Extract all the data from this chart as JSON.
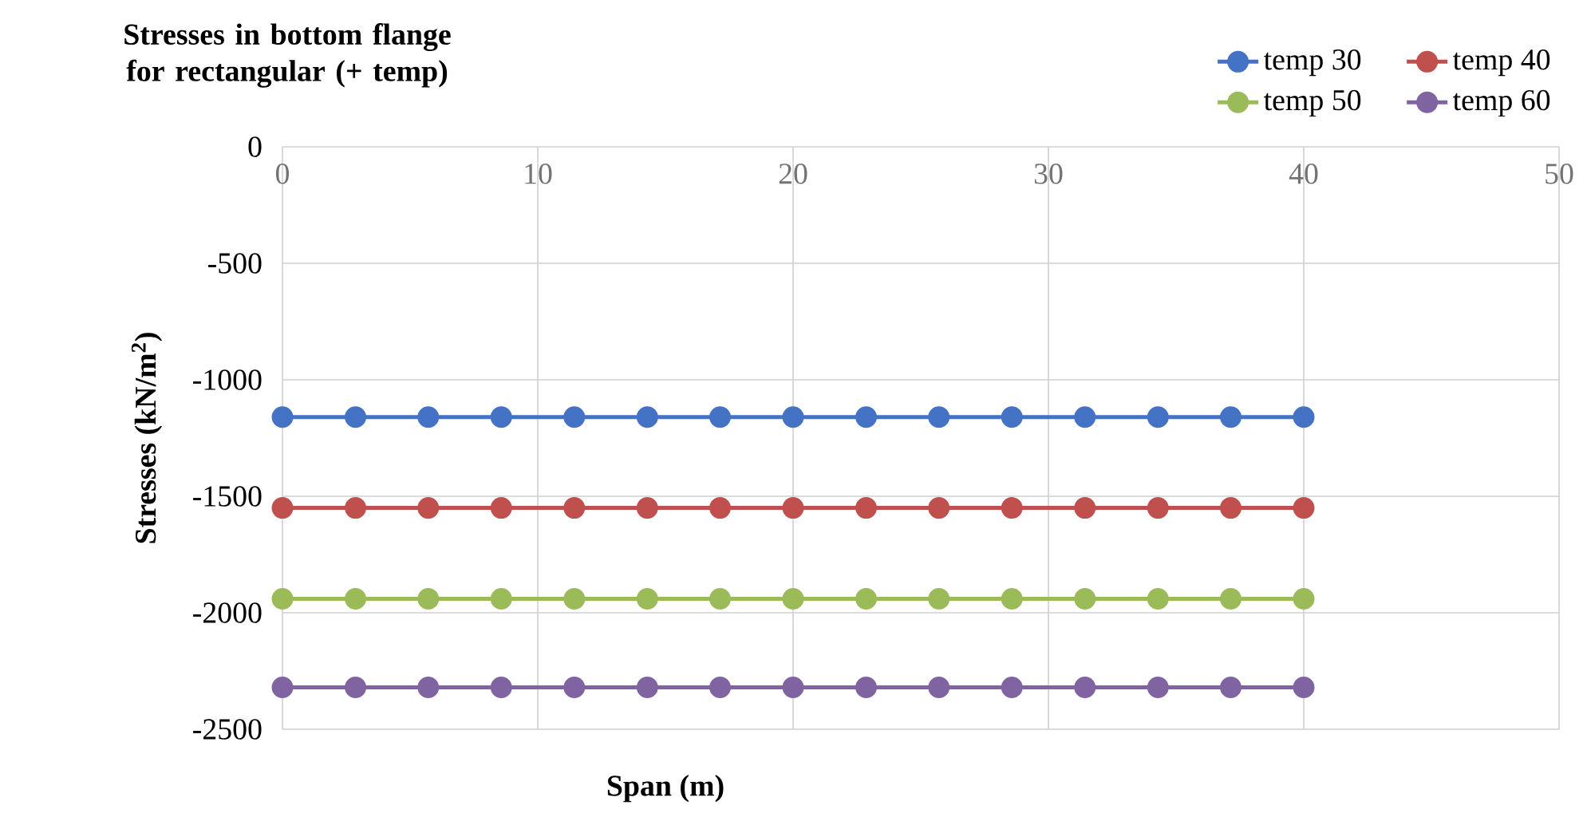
{
  "chart_data": {
    "type": "line",
    "title": "Stresses in bottom flange for rectangular (+ temp)",
    "xlabel": "Span (m)",
    "ylabel": "Stresses (kN/m$^{2}$)",
    "x": [
      0,
      2.86,
      5.71,
      8.57,
      11.43,
      14.29,
      17.14,
      20,
      22.86,
      25.71,
      28.57,
      31.43,
      34.29,
      37.14,
      40
    ],
    "series": [
      {
        "name": "temp 30",
        "color": "#4472c4",
        "values": [
          -1160,
          -1160,
          -1160,
          -1160,
          -1160,
          -1160,
          -1160,
          -1160,
          -1160,
          -1160,
          -1160,
          -1160,
          -1160,
          -1160,
          -1160
        ]
      },
      {
        "name": "temp 40",
        "color": "#c0504d",
        "values": [
          -1550,
          -1550,
          -1550,
          -1550,
          -1550,
          -1550,
          -1550,
          -1550,
          -1550,
          -1550,
          -1550,
          -1550,
          -1550,
          -1550,
          -1550
        ]
      },
      {
        "name": "temp 50",
        "color": "#9bbb59",
        "values": [
          -1940,
          -1940,
          -1940,
          -1940,
          -1940,
          -1940,
          -1940,
          -1940,
          -1940,
          -1940,
          -1940,
          -1940,
          -1940,
          -1940,
          -1940
        ]
      },
      {
        "name": "temp 60",
        "color": "#8064a2",
        "values": [
          -2320,
          -2320,
          -2320,
          -2320,
          -2320,
          -2320,
          -2320,
          -2320,
          -2320,
          -2320,
          -2320,
          -2320,
          -2320,
          -2320,
          -2320
        ]
      }
    ],
    "xlim": [
      0,
      50
    ],
    "ylim": [
      -2500,
      0
    ],
    "xticks": [
      0,
      10,
      20,
      30,
      40,
      50
    ],
    "yticks": [
      -2500,
      -2000,
      -1500,
      -1000,
      -500,
      0
    ],
    "grid": true,
    "legend": "top right",
    "marker": "circle",
    "line_style": "solid"
  }
}
